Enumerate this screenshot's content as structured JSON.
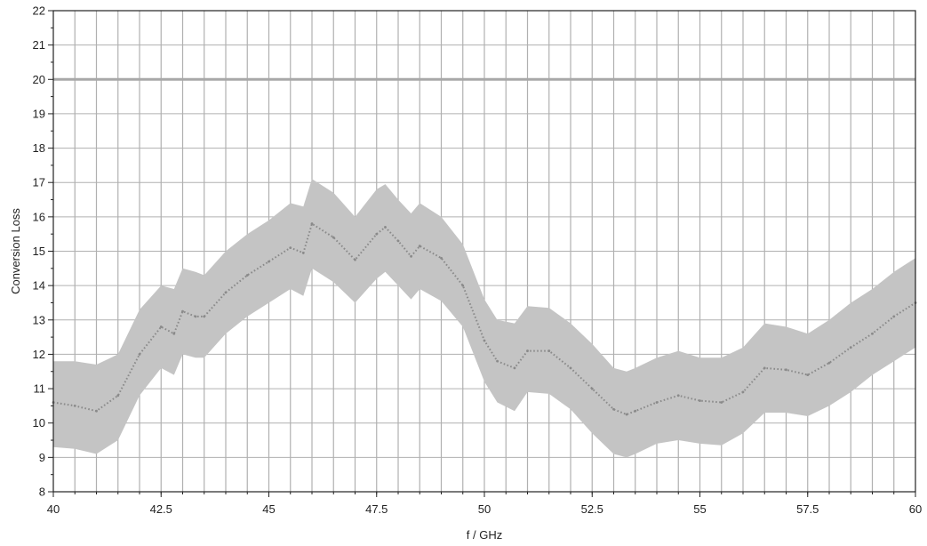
{
  "chart_data": {
    "type": "line",
    "title": "",
    "xlabel": "f / GHz",
    "ylabel": "Conversion Loss",
    "xlim": [
      40,
      60
    ],
    "ylim": [
      8,
      22
    ],
    "x_ticks": [
      "40",
      "42.5",
      "45",
      "47.5",
      "50",
      "52.5",
      "55",
      "57.5",
      "60"
    ],
    "y_ticks": [
      "8",
      "9",
      "10",
      "11",
      "12",
      "13",
      "14",
      "15",
      "16",
      "17",
      "18",
      "19",
      "20",
      "21",
      "22"
    ],
    "vertical_grid_step": 0.5,
    "grid": true,
    "legend": "none",
    "reference_line": {
      "y": 20
    },
    "series": [
      {
        "mean": {
          "x": [
            40,
            40.5,
            41,
            41.5,
            42,
            42.5,
            42.8,
            43,
            43.3,
            43.5,
            44,
            44.5,
            45,
            45.5,
            45.8,
            46,
            46.5,
            47,
            47.5,
            47.7,
            48,
            48.3,
            48.5,
            49,
            49.5,
            50,
            50.3,
            50.7,
            51,
            51.5,
            52,
            52.5,
            53,
            53.3,
            53.5,
            54,
            54.5,
            55,
            55.5,
            56,
            56.5,
            57,
            57.5,
            58,
            58.5,
            59,
            59.5,
            60
          ],
          "y": [
            10.6,
            10.5,
            10.35,
            10.8,
            12.0,
            12.8,
            12.6,
            13.25,
            13.1,
            13.1,
            13.8,
            14.3,
            14.7,
            15.1,
            14.95,
            15.8,
            15.4,
            14.75,
            15.5,
            15.7,
            15.3,
            14.85,
            15.15,
            14.8,
            14.0,
            12.4,
            11.8,
            11.6,
            12.1,
            12.1,
            11.6,
            11.0,
            10.4,
            10.25,
            10.35,
            10.6,
            10.8,
            10.65,
            10.6,
            10.9,
            11.6,
            11.55,
            11.4,
            11.75,
            12.2,
            12.6,
            13.1,
            13.5
          ]
        },
        "band": {
          "x": [
            40,
            40.5,
            41,
            41.5,
            42,
            42.5,
            42.8,
            43,
            43.3,
            43.5,
            44,
            44.5,
            45,
            45.5,
            45.8,
            46,
            46.5,
            47,
            47.5,
            47.7,
            48,
            48.3,
            48.5,
            49,
            49.5,
            50,
            50.3,
            50.7,
            51,
            51.5,
            52,
            52.5,
            53,
            53.3,
            53.5,
            54,
            54.5,
            55,
            55.5,
            56,
            56.5,
            57,
            57.5,
            58,
            58.5,
            59,
            59.5,
            60
          ],
          "upper": [
            11.8,
            11.8,
            11.7,
            12.0,
            13.3,
            14.0,
            13.9,
            14.5,
            14.4,
            14.3,
            15.0,
            15.5,
            15.9,
            16.4,
            16.3,
            17.1,
            16.7,
            16.0,
            16.8,
            16.95,
            16.5,
            16.1,
            16.4,
            16.0,
            15.2,
            13.6,
            13.0,
            12.9,
            13.4,
            13.35,
            12.9,
            12.3,
            11.6,
            11.5,
            11.6,
            11.9,
            12.1,
            11.9,
            11.9,
            12.2,
            12.9,
            12.8,
            12.6,
            13.0,
            13.5,
            13.9,
            14.4,
            14.8
          ],
          "lower": [
            9.3,
            9.25,
            9.1,
            9.5,
            10.8,
            11.6,
            11.4,
            12.0,
            11.9,
            11.9,
            12.6,
            13.1,
            13.5,
            13.9,
            13.7,
            14.5,
            14.1,
            13.5,
            14.2,
            14.4,
            14.0,
            13.6,
            13.9,
            13.55,
            12.8,
            11.2,
            10.6,
            10.35,
            10.9,
            10.85,
            10.4,
            9.7,
            9.1,
            9.0,
            9.1,
            9.4,
            9.5,
            9.4,
            9.35,
            9.7,
            10.3,
            10.3,
            10.2,
            10.5,
            10.9,
            11.4,
            11.8,
            12.2
          ]
        }
      }
    ],
    "colors": {
      "band": "#c4c4c4",
      "mean": "#8a8a8a",
      "grid": "#b0b0b0",
      "reference_line": "#a8a8a8",
      "frame": "#222222"
    }
  }
}
